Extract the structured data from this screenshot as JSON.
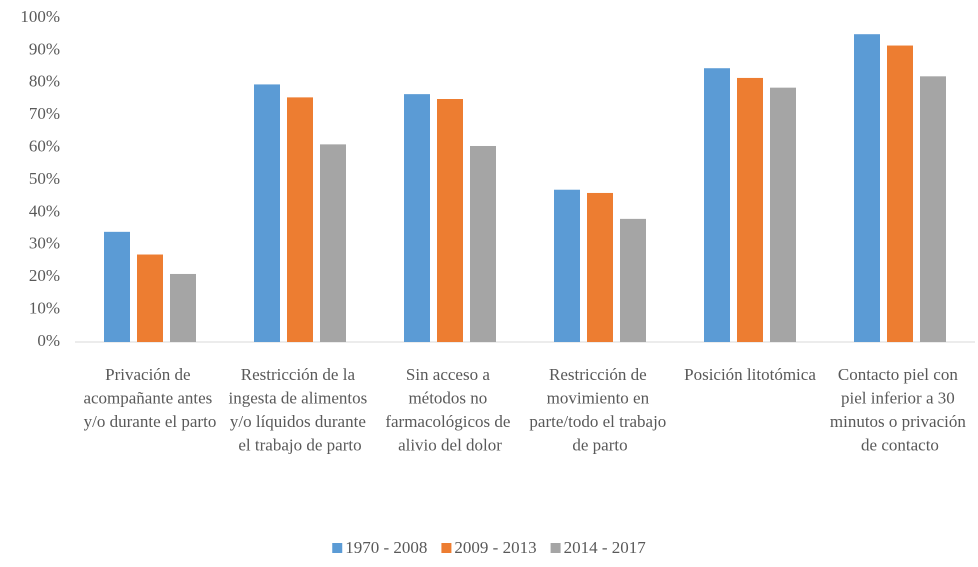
{
  "chart_data": {
    "type": "bar",
    "categories": [
      "Privación de acompañante antes y/o durante el parto",
      "Restricción de la ingesta de alimentos y/o líquidos durante el trabajo de parto",
      "Sin acceso a métodos no farmacológicos de alivio del dolor",
      "Restricción de movimiento en parte/todo el trabajo de parto",
      "Posición litotómica",
      "Contacto piel con piel inferior a 30 minutos o privación de contacto"
    ],
    "series": [
      {
        "name": "1970 - 2008",
        "color": "#5b9bd5",
        "values": [
          34,
          79.5,
          76.5,
          47,
          84.5,
          95
        ]
      },
      {
        "name": "2009 - 2013",
        "color": "#ed7d31",
        "values": [
          27,
          75.5,
          75,
          46,
          81.5,
          91.5
        ]
      },
      {
        "name": "2014 - 2017",
        "color": "#a5a5a5",
        "values": [
          21,
          61,
          60.5,
          38,
          78.5,
          82
        ]
      }
    ],
    "ylim": [
      0,
      100
    ],
    "yticks": [
      {
        "value": 0,
        "label": "0%"
      },
      {
        "value": 10,
        "label": "10%"
      },
      {
        "value": 20,
        "label": "20%"
      },
      {
        "value": 30,
        "label": "30%"
      },
      {
        "value": 40,
        "label": "40%"
      },
      {
        "value": 50,
        "label": "50%"
      },
      {
        "value": 60,
        "label": "60%"
      },
      {
        "value": 70,
        "label": "70%"
      },
      {
        "value": 80,
        "label": "80%"
      },
      {
        "value": 90,
        "label": "90%"
      },
      {
        "value": 100,
        "label": "100%"
      }
    ],
    "grid": false,
    "legend": "bottom"
  }
}
